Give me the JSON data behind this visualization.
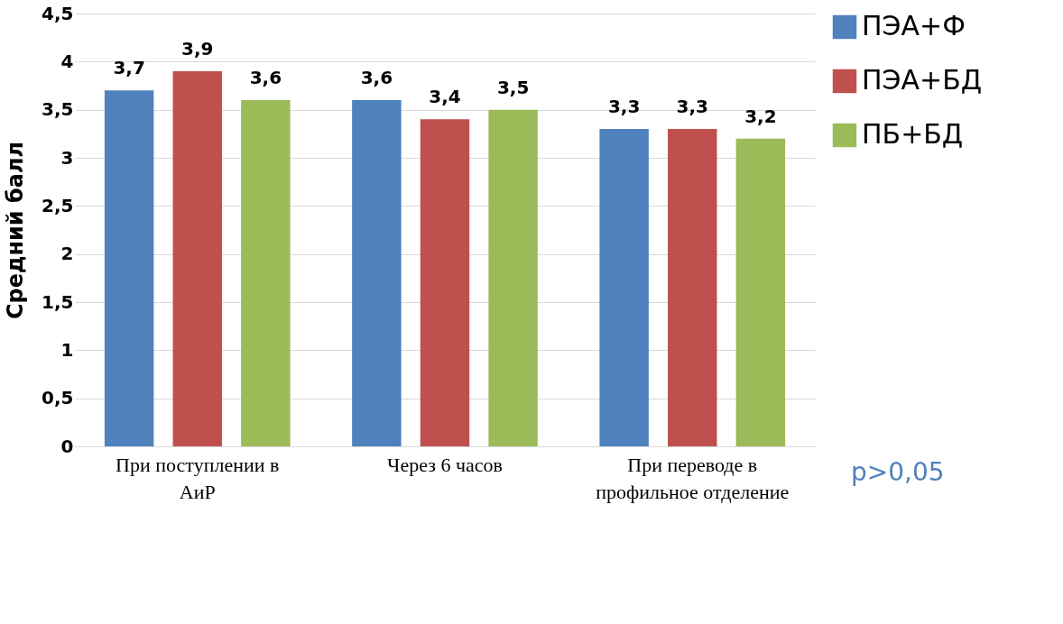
{
  "chart_data": {
    "type": "bar",
    "ylabel": "Средний балл",
    "categories": [
      "При поступлении в АиР",
      "Через 6 часов",
      "При переводе в профильное отделение"
    ],
    "series": [
      {
        "name": "ПЭА+Ф",
        "color": "#4f81bd",
        "values": [
          3.7,
          3.6,
          3.3
        ],
        "value_labels": [
          "3,7",
          "3,6",
          "3,3"
        ]
      },
      {
        "name": "ПЭА+БД",
        "color": "#c0504d",
        "values": [
          3.9,
          3.4,
          3.3
        ],
        "value_labels": [
          "3,9",
          "3,4",
          "3,3"
        ]
      },
      {
        "name": "ПБ+БД",
        "color": "#9bbb59",
        "values": [
          3.6,
          3.5,
          3.2
        ],
        "value_labels": [
          "3,6",
          "3,5",
          "3,2"
        ]
      }
    ],
    "ylim": [
      0,
      4.5
    ],
    "yticks": [
      0,
      {
        "value": 0.5,
        "label": "0,5"
      },
      1,
      {
        "value": 1.5,
        "label": "1,5"
      },
      2,
      {
        "value": 2.5,
        "label": "2,5"
      },
      3,
      {
        "value": 3.5,
        "label": "3,5"
      },
      4,
      {
        "value": 4.5,
        "label": "4,5"
      }
    ],
    "grid": "y",
    "legend": "right",
    "annotations": [
      "p>0,05"
    ]
  }
}
